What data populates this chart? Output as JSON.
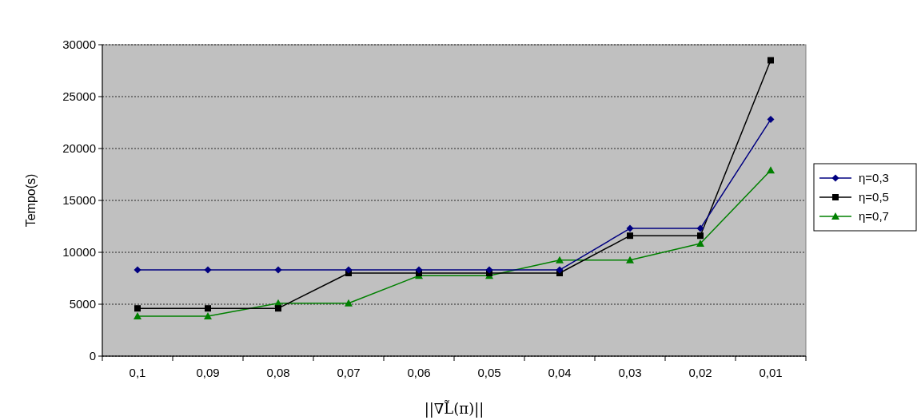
{
  "chart_data": {
    "type": "line",
    "xlabel": "||∇L̃(π)||",
    "ylabel": "Tempo(s)",
    "categories": [
      "0,1",
      "0,09",
      "0,08",
      "0,07",
      "0,06",
      "0,05",
      "0,04",
      "0,03",
      "0,02",
      "0,01"
    ],
    "series": [
      {
        "name": "η=0,3",
        "color": "#000080",
        "marker": "diamond",
        "values": [
          8300,
          8300,
          8300,
          8300,
          8300,
          8300,
          8300,
          12300,
          12300,
          22800
        ]
      },
      {
        "name": "η=0,5",
        "color": "#000000",
        "marker": "square",
        "values": [
          4600,
          4600,
          4600,
          8000,
          8000,
          8000,
          8000,
          11600,
          11600,
          28500
        ]
      },
      {
        "name": "η=0,7",
        "color": "#008000",
        "marker": "triangle",
        "values": [
          3850,
          3850,
          5100,
          5100,
          7750,
          7750,
          9250,
          9250,
          10850,
          17900
        ]
      }
    ],
    "ylim": [
      0,
      30000
    ],
    "yticks": [
      0,
      5000,
      10000,
      15000,
      20000,
      25000,
      30000
    ],
    "grid": "y",
    "legend": "right"
  }
}
